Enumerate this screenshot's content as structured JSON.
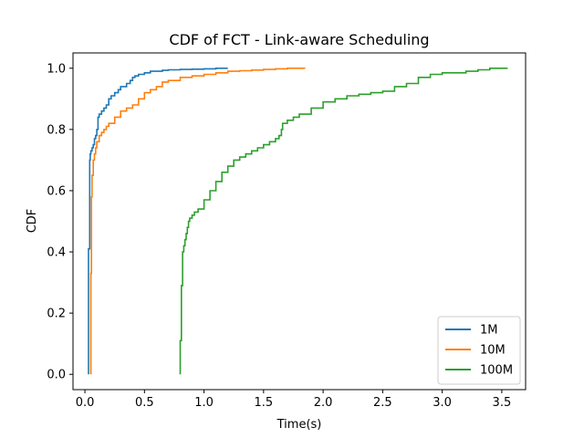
{
  "chart_data": {
    "type": "line",
    "title": "CDF of FCT - Link-aware Scheduling",
    "xlabel": "Time(s)",
    "ylabel": "CDF",
    "xlim": [
      -0.1,
      3.7
    ],
    "ylim": [
      -0.05,
      1.05
    ],
    "xticks": [
      0.0,
      0.5,
      1.0,
      1.5,
      2.0,
      2.5,
      3.0,
      3.5
    ],
    "xtick_labels": [
      "0.0",
      "0.5",
      "1.0",
      "1.5",
      "2.0",
      "2.5",
      "3.0",
      "3.5"
    ],
    "yticks": [
      0.0,
      0.2,
      0.4,
      0.6,
      0.8,
      1.0
    ],
    "ytick_labels": [
      "0.0",
      "0.2",
      "0.4",
      "0.6",
      "0.8",
      "1.0"
    ],
    "grid": false,
    "legend_position": "lower-right",
    "series": [
      {
        "name": "1M",
        "color": "#1f77b4",
        "x": [
          0.03,
          0.03,
          0.035,
          0.04,
          0.045,
          0.05,
          0.06,
          0.07,
          0.08,
          0.09,
          0.1,
          0.11,
          0.12,
          0.14,
          0.16,
          0.18,
          0.2,
          0.22,
          0.25,
          0.28,
          0.3,
          0.32,
          0.35,
          0.38,
          0.4,
          0.42,
          0.45,
          0.5,
          0.55,
          0.6,
          0.65,
          0.7,
          0.8,
          0.9,
          1.0,
          1.1,
          1.2
        ],
        "y": [
          0.0,
          0.41,
          0.41,
          0.7,
          0.72,
          0.73,
          0.74,
          0.75,
          0.77,
          0.78,
          0.8,
          0.84,
          0.85,
          0.86,
          0.87,
          0.88,
          0.9,
          0.91,
          0.92,
          0.93,
          0.94,
          0.94,
          0.95,
          0.96,
          0.97,
          0.975,
          0.98,
          0.985,
          0.99,
          0.99,
          0.993,
          0.995,
          0.996,
          0.997,
          0.998,
          1.0,
          1.0
        ]
      },
      {
        "name": "10M",
        "color": "#ff7f0e",
        "x": [
          0.05,
          0.05,
          0.055,
          0.06,
          0.07,
          0.08,
          0.09,
          0.1,
          0.12,
          0.14,
          0.16,
          0.18,
          0.2,
          0.25,
          0.3,
          0.35,
          0.4,
          0.45,
          0.5,
          0.55,
          0.6,
          0.65,
          0.7,
          0.8,
          0.9,
          1.0,
          1.1,
          1.2,
          1.3,
          1.4,
          1.5,
          1.6,
          1.7,
          1.85
        ],
        "y": [
          0.0,
          0.33,
          0.58,
          0.65,
          0.7,
          0.72,
          0.74,
          0.76,
          0.78,
          0.79,
          0.8,
          0.81,
          0.82,
          0.84,
          0.86,
          0.87,
          0.88,
          0.9,
          0.92,
          0.93,
          0.94,
          0.955,
          0.96,
          0.97,
          0.975,
          0.98,
          0.985,
          0.99,
          0.992,
          0.994,
          0.996,
          0.998,
          1.0,
          1.0
        ]
      },
      {
        "name": "100M",
        "color": "#2ca02c",
        "x": [
          0.8,
          0.8,
          0.81,
          0.82,
          0.83,
          0.84,
          0.85,
          0.86,
          0.87,
          0.88,
          0.9,
          0.92,
          0.95,
          1.0,
          1.05,
          1.1,
          1.15,
          1.2,
          1.25,
          1.3,
          1.35,
          1.4,
          1.45,
          1.5,
          1.55,
          1.6,
          1.63,
          1.65,
          1.66,
          1.7,
          1.75,
          1.8,
          1.9,
          2.0,
          2.1,
          2.2,
          2.3,
          2.4,
          2.5,
          2.6,
          2.7,
          2.8,
          2.9,
          3.0,
          3.1,
          3.2,
          3.3,
          3.4,
          3.55
        ],
        "y": [
          0.0,
          0.11,
          0.29,
          0.4,
          0.42,
          0.44,
          0.46,
          0.48,
          0.5,
          0.51,
          0.52,
          0.53,
          0.54,
          0.57,
          0.6,
          0.63,
          0.66,
          0.68,
          0.7,
          0.71,
          0.72,
          0.73,
          0.74,
          0.75,
          0.76,
          0.77,
          0.78,
          0.8,
          0.82,
          0.83,
          0.84,
          0.85,
          0.87,
          0.89,
          0.9,
          0.91,
          0.915,
          0.92,
          0.925,
          0.94,
          0.95,
          0.97,
          0.98,
          0.985,
          0.985,
          0.99,
          0.995,
          1.0,
          1.0
        ]
      }
    ]
  }
}
